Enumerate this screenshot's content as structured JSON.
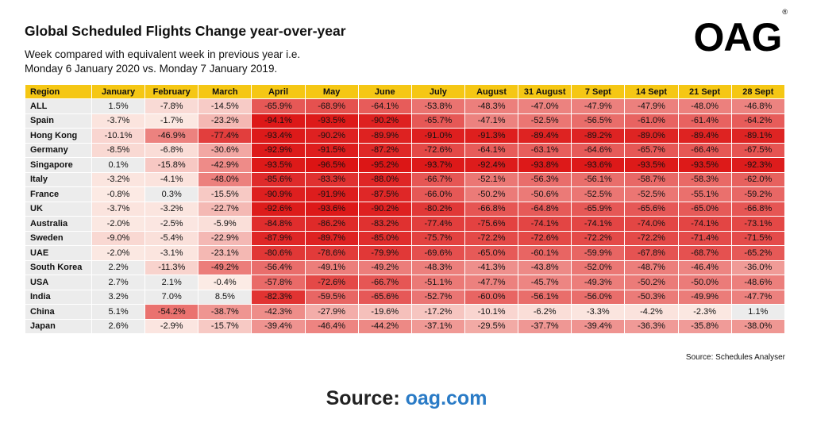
{
  "title": "Global Scheduled Flights Change year-over-year",
  "subtitle_line1": "Week compared with equivalent week in previous year i.e.",
  "subtitle_line2": "Monday 6 January 2020 vs. Monday 7 January 2019.",
  "logo_text": "OAG",
  "logo_mark": "®",
  "source_small": "Source: Schedules Analyser",
  "source_big_label": "Source:",
  "source_big_link": "oag.com",
  "colors": {
    "header": "#f5c714",
    "region_bg": "#ececec",
    "link": "#2a7bc6"
  },
  "chart_data": {
    "type": "heatmap",
    "title": "Global Scheduled Flights Change year-over-year",
    "row_header": "Region",
    "columns": [
      "January",
      "February",
      "March",
      "April",
      "May",
      "June",
      "July",
      "August",
      "31 August",
      "7 Sept",
      "14 Sept",
      "21 Sept",
      "28 Sept"
    ],
    "rows": [
      {
        "region": "ALL",
        "values": [
          1.5,
          -7.8,
          -14.5,
          -65.9,
          -68.9,
          -64.1,
          -53.8,
          -48.3,
          -47.0,
          -47.9,
          -47.9,
          -48.0,
          -46.8
        ]
      },
      {
        "region": "Spain",
        "values": [
          -3.7,
          -1.7,
          -23.2,
          -94.1,
          -93.5,
          -90.2,
          -65.7,
          -47.1,
          -52.5,
          -56.5,
          -61.0,
          -61.4,
          -64.2
        ]
      },
      {
        "region": "Hong Kong",
        "values": [
          -10.1,
          -46.9,
          -77.4,
          -93.4,
          -90.2,
          -89.9,
          -91.0,
          -91.3,
          -89.4,
          -89.2,
          -89.0,
          -89.4,
          -89.1
        ]
      },
      {
        "region": "Germany",
        "values": [
          -8.5,
          -6.8,
          -30.6,
          -92.9,
          -91.5,
          -87.2,
          -72.6,
          -64.1,
          -63.1,
          -64.6,
          -65.7,
          -66.4,
          -67.5
        ]
      },
      {
        "region": "Singapore",
        "values": [
          0.1,
          -15.8,
          -42.9,
          -93.5,
          -96.5,
          -95.2,
          -93.7,
          -92.4,
          -93.8,
          -93.6,
          -93.5,
          -93.5,
          -92.3
        ]
      },
      {
        "region": "Italy",
        "values": [
          -3.2,
          -4.1,
          -48.0,
          -85.6,
          -83.3,
          -88.0,
          -66.7,
          -52.1,
          -56.3,
          -56.1,
          -58.7,
          -58.3,
          -62.0
        ]
      },
      {
        "region": "France",
        "values": [
          -0.8,
          0.3,
          -15.5,
          -90.9,
          -91.9,
          -87.5,
          -66.0,
          -50.2,
          -50.6,
          -52.5,
          -52.5,
          -55.1,
          -59.2
        ]
      },
      {
        "region": "UK",
        "values": [
          -3.7,
          -3.2,
          -22.7,
          -92.6,
          -93.6,
          -90.2,
          -80.2,
          -66.8,
          -64.8,
          -65.9,
          -65.6,
          -65.0,
          -66.8
        ]
      },
      {
        "region": "Australia",
        "values": [
          -2.0,
          -2.5,
          -5.9,
          -84.8,
          -86.2,
          -83.2,
          -77.4,
          -75.6,
          -74.1,
          -74.1,
          -74.0,
          -74.1,
          -73.1
        ]
      },
      {
        "region": "Sweden",
        "values": [
          -9.0,
          -5.4,
          -22.9,
          -87.9,
          -89.7,
          -85.0,
          -75.7,
          -72.2,
          -72.6,
          -72.2,
          -72.2,
          -71.4,
          -71.5
        ]
      },
      {
        "region": "UAE",
        "values": [
          -2.0,
          -3.1,
          -23.1,
          -80.6,
          -78.6,
          -79.9,
          -69.6,
          -65.0,
          -60.1,
          -59.9,
          -67.8,
          -68.7,
          -65.2
        ]
      },
      {
        "region": "South Korea",
        "values": [
          2.2,
          -11.3,
          -49.2,
          -56.4,
          -49.1,
          -49.2,
          -48.3,
          -41.3,
          -43.8,
          -52.0,
          -48.7,
          -46.4,
          -36.0
        ]
      },
      {
        "region": "USA",
        "values": [
          2.7,
          2.1,
          -0.4,
          -57.8,
          -72.6,
          -66.7,
          -51.1,
          -47.7,
          -45.7,
          -49.3,
          -50.2,
          -50.0,
          -48.6
        ]
      },
      {
        "region": "India",
        "values": [
          3.2,
          7.0,
          8.5,
          -82.3,
          -59.5,
          -65.6,
          -52.7,
          -60.0,
          -56.1,
          -56.0,
          -50.3,
          -49.9,
          -47.7
        ]
      },
      {
        "region": "China",
        "values": [
          5.1,
          -54.2,
          -38.7,
          -42.3,
          -27.9,
          -19.6,
          -17.2,
          -10.1,
          -6.2,
          -3.3,
          -4.2,
          -2.3,
          1.1
        ]
      },
      {
        "region": "Japan",
        "values": [
          2.6,
          -2.9,
          -15.7,
          -39.4,
          -46.4,
          -44.2,
          -37.1,
          -29.5,
          -37.7,
          -39.4,
          -36.3,
          -35.8,
          -38.0
        ]
      }
    ],
    "unit": "%"
  }
}
